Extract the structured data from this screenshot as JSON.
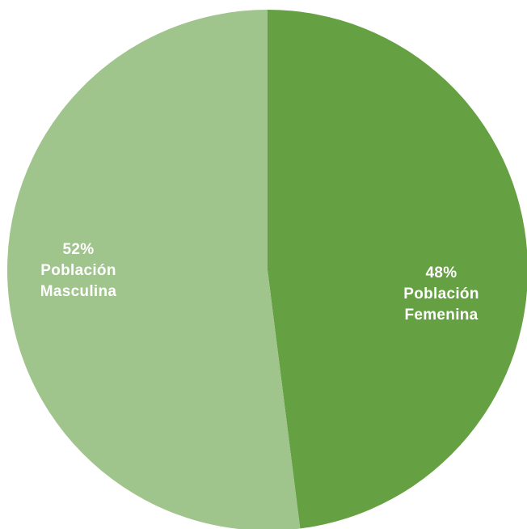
{
  "chart_data": {
    "type": "pie",
    "title": "",
    "start_angle_deg": 0,
    "direction": "clockwise",
    "legend": "none",
    "slices": [
      {
        "key": "femenina",
        "value": 48,
        "percent_label": "48%",
        "label_lines": [
          "Población",
          "Femenina"
        ],
        "color": "#65a042"
      },
      {
        "key": "masculina",
        "value": 52,
        "percent_label": "52%",
        "label_lines": [
          "Población",
          "Masculina"
        ],
        "color": "#9fc48c"
      }
    ]
  }
}
